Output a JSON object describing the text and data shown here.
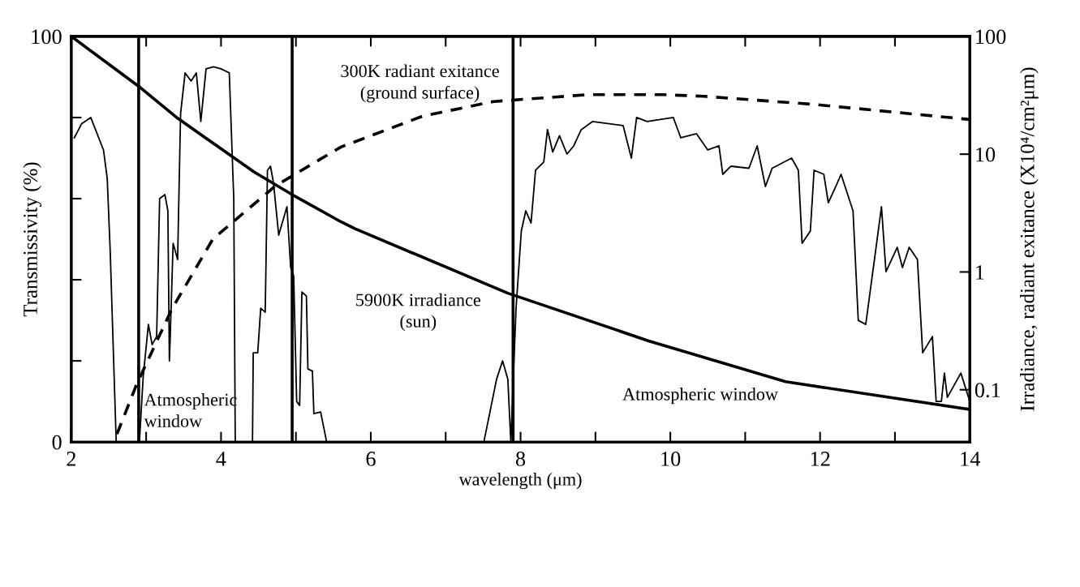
{
  "chart_data": {
    "type": "line",
    "xlabel": "wavelength (μm)",
    "ylabel": "Transmissivity (%)",
    "y2label": "Irradiance, radiant exitance (X10⁴/cm²μm)",
    "xlim": [
      2,
      14
    ],
    "xticks": [
      2,
      {
        "value": 3,
        "label": null
      },
      4,
      {
        "value": 5,
        "label": null
      },
      6,
      {
        "value": 7,
        "label": null
      },
      8,
      {
        "value": 9,
        "label": null
      },
      10,
      {
        "value": 11,
        "label": null
      },
      12,
      {
        "value": 13,
        "label": null
      },
      14
    ],
    "ylim": [
      0,
      100
    ],
    "yticks": [
      0,
      {
        "value": 20,
        "label": null
      },
      {
        "value": 40,
        "label": null
      },
      {
        "value": 60,
        "label": null
      },
      {
        "value": 80,
        "label": null
      },
      100
    ],
    "y2lim": [
      0.036,
      100
    ],
    "y2ticks": [
      0.1,
      1,
      10,
      100
    ],
    "log": "y2",
    "grid": false,
    "legend": false,
    "marker": "none",
    "annotations": [
      "300K radiant exitance\n(ground surface)",
      "5900K irradiance\n(sun)",
      "Atmospheric\nwindow",
      "Atmospheric window"
    ],
    "ref_lines": [
      {
        "axis": "x",
        "value": 2.9,
        "color": "#000000"
      },
      {
        "axis": "x",
        "value": 4.95,
        "color": "#000000"
      },
      {
        "axis": "x",
        "value": 7.9,
        "color": "#000000"
      }
    ],
    "series": [
      {
        "color": "#000000",
        "line_style": "solid",
        "x": [
          2.04,
          2.14,
          2.26,
          2.43,
          2.48,
          2.52,
          2.6,
          2.91,
          2.96,
          3.03,
          3.08,
          3.14,
          3.18,
          3.25,
          3.29,
          3.31,
          3.32,
          3.36,
          3.42,
          3.46,
          3.52,
          3.6,
          3.67,
          3.73,
          3.8,
          3.9,
          4.0,
          4.11,
          4.17,
          4.19,
          4.42,
          4.43,
          4.49,
          4.53,
          4.59,
          4.62,
          4.66,
          4.7,
          4.77,
          4.88,
          4.93,
          4.97,
          5.01,
          5.05,
          5.08,
          5.14,
          5.16,
          5.22,
          5.24,
          5.33,
          5.41,
          7.51,
          7.68,
          7.76,
          7.83,
          7.87,
          7.94,
          8.01,
          8.07,
          8.14,
          8.2,
          8.31,
          8.36,
          8.43,
          8.52,
          8.62,
          8.71,
          8.81,
          8.96,
          9.37,
          9.48,
          9.55,
          9.69,
          10.04,
          10.14,
          10.35,
          10.5,
          10.65,
          10.7,
          10.81,
          11.05,
          11.16,
          11.27,
          11.36,
          11.62,
          11.71,
          11.76,
          11.87,
          11.92,
          12.05,
          12.11,
          12.21,
          12.28,
          12.44,
          12.51,
          12.61,
          12.82,
          12.88,
          13.03,
          13.1,
          13.19,
          13.3,
          13.37,
          13.5,
          13.55,
          13.62,
          13.66,
          13.7,
          13.88,
          14
        ],
        "values": [
          75,
          78.5,
          80,
          72,
          65,
          47,
          0,
          0,
          16,
          29,
          24,
          26,
          60,
          61,
          57,
          20,
          25,
          49,
          45,
          81,
          91,
          89,
          91,
          79,
          92,
          92.5,
          92,
          91,
          60,
          0,
          0,
          22,
          22,
          33,
          32,
          67,
          68,
          64,
          51,
          58,
          43,
          41,
          10,
          9,
          37,
          36,
          18,
          17.5,
          7,
          7.4,
          0,
          0,
          15.5,
          20,
          15.5,
          0,
          33,
          52,
          57,
          54,
          67,
          69,
          77,
          71.5,
          75.5,
          71,
          73,
          77,
          79,
          78,
          70,
          80,
          79,
          80,
          75,
          76,
          72,
          73,
          66,
          68,
          67.5,
          73,
          63,
          67.5,
          70,
          67,
          49,
          52,
          67,
          66,
          59,
          63,
          66,
          57,
          30,
          29,
          58,
          42,
          48,
          43,
          48,
          45,
          22,
          26,
          10,
          10,
          17,
          11,
          17,
          10
        ]
      },
      {
        "color": "#000000",
        "line_style": "solid",
        "axis": "y2",
        "x": [
          2,
          2.9,
          3.42,
          4.44,
          4.94,
          5.6,
          5.79,
          7.83,
          9.71,
          11.54,
          14
        ],
        "values": [
          100,
          37.7,
          20.2,
          7.07,
          4.57,
          2.67,
          2.33,
          0.66,
          0.26,
          0.117,
          0.068
        ]
      },
      {
        "color": "#000000",
        "line_style": "dashed",
        "axis": "y2",
        "x": [
          2.61,
          2.87,
          3.34,
          3.89,
          4.73,
          5.6,
          6.69,
          7.64,
          8.89,
          9.92,
          10.45,
          11.91,
          14
        ],
        "values": [
          0.042,
          0.11,
          0.48,
          1.9,
          5.4,
          11.5,
          21,
          28,
          32,
          32,
          31,
          26.5,
          19.7
        ]
      }
    ]
  }
}
